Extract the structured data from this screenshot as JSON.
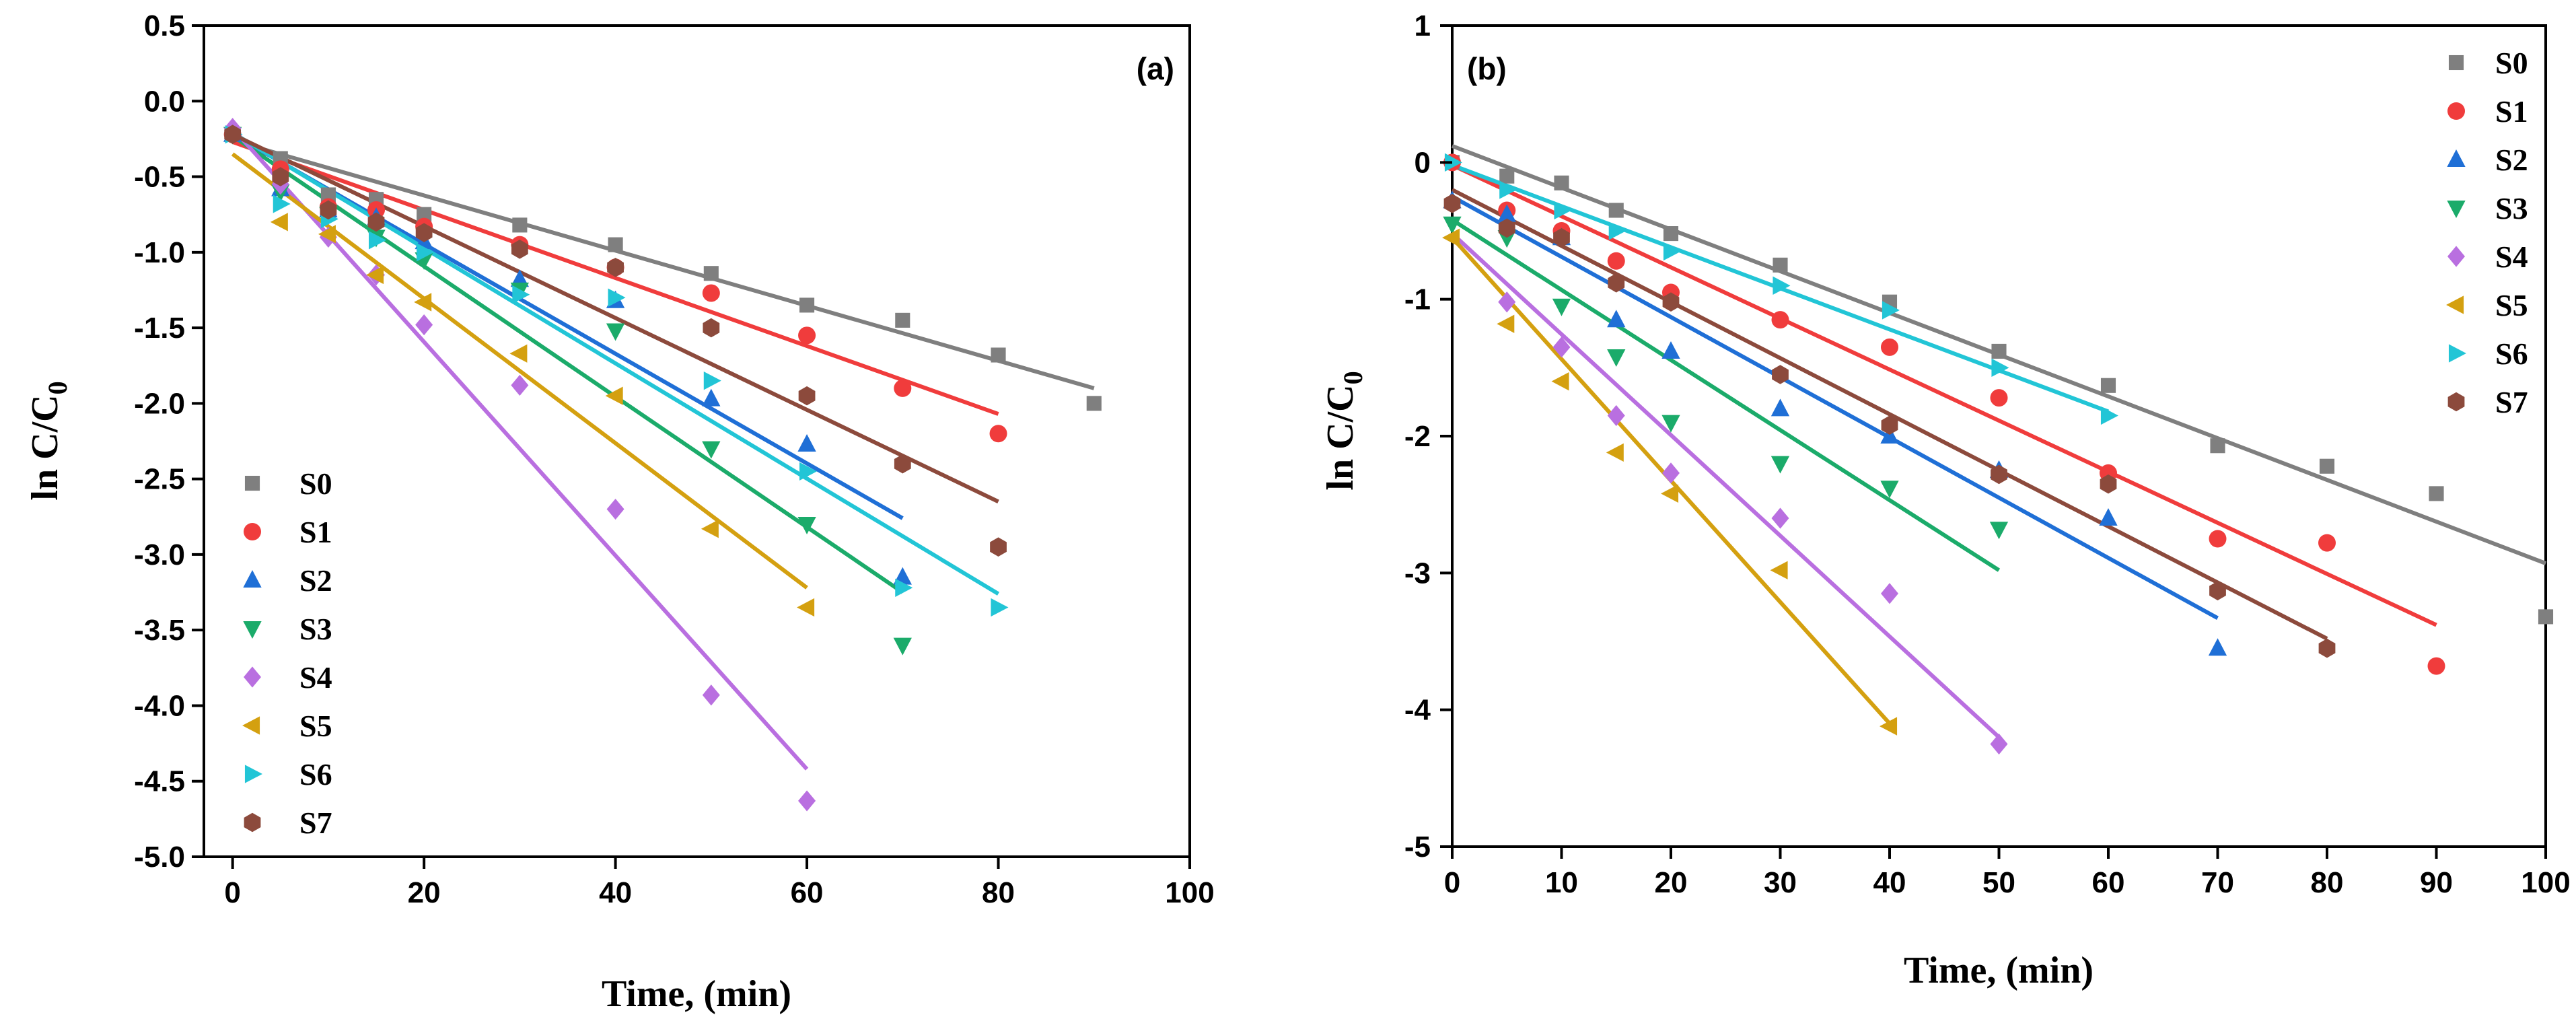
{
  "chart_data": [
    {
      "type": "scatter",
      "panel": "(a)",
      "xlabel": "Time, (min)",
      "ylabel_main": "ln C/C",
      "ylabel_sub": "0",
      "xlim": [
        -3,
        100
      ],
      "ylim": [
        -5.0,
        0.5
      ],
      "xticks": [
        0,
        20,
        40,
        60,
        80,
        100
      ],
      "yticks": [
        0.5,
        0.0,
        -0.5,
        -1.0,
        -1.5,
        -2.0,
        -2.5,
        -3.0,
        -3.5,
        -4.0,
        -4.5,
        -5.0
      ],
      "ytick_labels": [
        "0.5",
        "0.0",
        "-0.5",
        "-1.0",
        "-1.5",
        "-2.0",
        "-2.5",
        "-3.0",
        "-3.5",
        "-4.0",
        "-4.5",
        "-5.0"
      ],
      "legend_position": "bottom-left",
      "series": [
        {
          "name": "S0",
          "color": "#7f7f7f",
          "marker": "square",
          "x": [
            0,
            5,
            10,
            15,
            20,
            30,
            40,
            50,
            60,
            70,
            80,
            90
          ],
          "y": [
            -0.22,
            -0.38,
            -0.62,
            -0.65,
            -0.75,
            -0.82,
            -0.95,
            -1.14,
            -1.35,
            -1.45,
            -1.68,
            -2.0
          ],
          "fit": [
            [
              0,
              -0.26
            ],
            [
              90,
              -1.9
            ]
          ]
        },
        {
          "name": "S1",
          "color": "#f03c3c",
          "marker": "circle",
          "x": [
            0,
            5,
            10,
            15,
            20,
            30,
            40,
            50,
            60,
            70,
            80
          ],
          "y": [
            -0.22,
            -0.45,
            -0.7,
            -0.72,
            -0.83,
            -0.95,
            -1.1,
            -1.27,
            -1.55,
            -1.9,
            -2.2
          ],
          "fit": [
            [
              0,
              -0.27
            ],
            [
              80,
              -2.07
            ]
          ]
        },
        {
          "name": "S2",
          "color": "#1f6fd6",
          "marker": "triangle-up",
          "x": [
            0,
            5,
            10,
            15,
            20,
            30,
            40,
            50,
            60,
            70
          ],
          "y": [
            -0.22,
            -0.58,
            -0.72,
            -0.77,
            -0.93,
            -1.18,
            -1.32,
            -1.97,
            -2.27,
            -3.15
          ],
          "fit": [
            [
              0,
              -0.22
            ],
            [
              70,
              -2.76
            ]
          ]
        },
        {
          "name": "S3",
          "color": "#1bab6a",
          "marker": "triangle-down",
          "x": [
            0,
            5,
            10,
            15,
            20,
            30,
            40,
            50,
            60,
            70
          ],
          "y": [
            -0.22,
            -0.6,
            -0.75,
            -0.9,
            -1.05,
            -1.25,
            -1.52,
            -2.3,
            -2.8,
            -3.6
          ],
          "fit": [
            [
              0,
              -0.23
            ],
            [
              70,
              -3.25
            ]
          ]
        },
        {
          "name": "S4",
          "color": "#b96fe0",
          "marker": "diamond",
          "x": [
            0,
            5,
            10,
            15,
            20,
            30,
            40,
            50,
            60
          ],
          "y": [
            -0.18,
            -0.55,
            -0.9,
            -1.15,
            -1.48,
            -1.88,
            -2.7,
            -3.93,
            -4.63
          ],
          "fit": [
            [
              0,
              -0.18
            ],
            [
              60,
              -4.42
            ]
          ]
        },
        {
          "name": "S5",
          "color": "#d4a010",
          "marker": "triangle-left",
          "x": [
            5,
            10,
            15,
            20,
            30,
            40,
            50,
            60
          ],
          "y": [
            -0.8,
            -0.88,
            -1.15,
            -1.33,
            -1.67,
            -1.95,
            -2.83,
            -3.35
          ],
          "fit": [
            [
              0,
              -0.35
            ],
            [
              60,
              -3.22
            ]
          ]
        },
        {
          "name": "S6",
          "color": "#22c5d6",
          "marker": "triangle-right",
          "x": [
            0,
            5,
            10,
            15,
            20,
            30,
            40,
            50,
            60,
            70,
            80
          ],
          "y": [
            -0.22,
            -0.68,
            -0.78,
            -0.92,
            -1.0,
            -1.28,
            -1.3,
            -1.85,
            -2.45,
            -3.22,
            -3.35
          ],
          "fit": [
            [
              0,
              -0.21
            ],
            [
              80,
              -3.26
            ]
          ]
        },
        {
          "name": "S7",
          "color": "#8c4a3c",
          "marker": "hexagon",
          "x": [
            0,
            5,
            10,
            15,
            20,
            30,
            40,
            50,
            60,
            70,
            80
          ],
          "y": [
            -0.22,
            -0.5,
            -0.72,
            -0.8,
            -0.87,
            -0.98,
            -1.1,
            -1.5,
            -1.95,
            -2.4,
            -2.95
          ],
          "fit": [
            [
              0,
              -0.22
            ],
            [
              80,
              -2.65
            ]
          ]
        }
      ]
    },
    {
      "type": "scatter",
      "panel": "(b)",
      "xlabel": "Time, (min)",
      "ylabel_main": "ln C/C",
      "ylabel_sub": "0",
      "xlim": [
        0,
        100
      ],
      "ylim": [
        -5,
        1
      ],
      "xticks": [
        0,
        10,
        20,
        30,
        40,
        50,
        60,
        70,
        80,
        90,
        100
      ],
      "yticks": [
        1,
        0,
        -1,
        -2,
        -3,
        -4,
        -5
      ],
      "ytick_labels": [
        "1",
        "0",
        "-1",
        "-2",
        "-3",
        "-4",
        "-5"
      ],
      "legend_position": "top-right",
      "series": [
        {
          "name": "S0",
          "color": "#7f7f7f",
          "marker": "square",
          "x": [
            0,
            5,
            10,
            15,
            20,
            30,
            40,
            50,
            60,
            70,
            80,
            90,
            100
          ],
          "y": [
            0.0,
            -0.1,
            -0.15,
            -0.35,
            -0.52,
            -0.75,
            -1.02,
            -1.38,
            -1.63,
            -2.07,
            -2.22,
            -2.42,
            -3.32
          ],
          "fit": [
            [
              0,
              0.12
            ],
            [
              100,
              -2.93
            ]
          ]
        },
        {
          "name": "S1",
          "color": "#f03c3c",
          "marker": "circle",
          "x": [
            0,
            5,
            10,
            15,
            20,
            30,
            40,
            50,
            60,
            70,
            80,
            90
          ],
          "y": [
            0.0,
            -0.35,
            -0.5,
            -0.72,
            -0.95,
            -1.15,
            -1.35,
            -1.72,
            -2.27,
            -2.75,
            -2.78,
            -3.68
          ],
          "fit": [
            [
              0,
              -0.02
            ],
            [
              90,
              -3.38
            ]
          ]
        },
        {
          "name": "S2",
          "color": "#1f6fd6",
          "marker": "triangle-up",
          "x": [
            0,
            5,
            10,
            15,
            20,
            30,
            40,
            50,
            60,
            70
          ],
          "y": [
            -0.28,
            -0.38,
            -0.55,
            -1.15,
            -1.38,
            -1.8,
            -2.0,
            -2.25,
            -2.6,
            -3.55
          ],
          "fit": [
            [
              0,
              -0.25
            ],
            [
              70,
              -3.33
            ]
          ]
        },
        {
          "name": "S3",
          "color": "#1bab6a",
          "marker": "triangle-down",
          "x": [
            0,
            5,
            10,
            15,
            20,
            30,
            40,
            50
          ],
          "y": [
            -0.45,
            -0.55,
            -1.05,
            -1.42,
            -1.9,
            -2.2,
            -2.38,
            -2.68
          ],
          "fit": [
            [
              0,
              -0.42
            ],
            [
              50,
              -2.98
            ]
          ]
        },
        {
          "name": "S4",
          "color": "#b96fe0",
          "marker": "diamond",
          "x": [
            5,
            10,
            15,
            20,
            30,
            40,
            50
          ],
          "y": [
            -1.02,
            -1.35,
            -1.85,
            -2.27,
            -2.6,
            -3.15,
            -4.25
          ],
          "fit": [
            [
              0,
              -0.52
            ],
            [
              50,
              -4.2
            ]
          ]
        },
        {
          "name": "S5",
          "color": "#d4a010",
          "marker": "triangle-left",
          "x": [
            0,
            5,
            10,
            15,
            20,
            30,
            40
          ],
          "y": [
            -0.55,
            -1.18,
            -1.6,
            -2.12,
            -2.42,
            -2.98,
            -4.12
          ],
          "fit": [
            [
              0,
              -0.55
            ],
            [
              40,
              -4.1
            ]
          ]
        },
        {
          "name": "S6",
          "color": "#22c5d6",
          "marker": "triangle-right",
          "x": [
            0,
            5,
            10,
            15,
            20,
            30,
            40,
            50,
            60
          ],
          "y": [
            0.0,
            -0.2,
            -0.35,
            -0.5,
            -0.65,
            -0.9,
            -1.08,
            -1.5,
            -1.85
          ],
          "fit": [
            [
              0,
              -0.02
            ],
            [
              60,
              -1.82
            ]
          ]
        },
        {
          "name": "S7",
          "color": "#8c4a3c",
          "marker": "hexagon",
          "x": [
            0,
            5,
            10,
            15,
            20,
            30,
            40,
            50,
            60,
            70,
            80
          ],
          "y": [
            -0.3,
            -0.48,
            -0.55,
            -0.88,
            -1.02,
            -1.55,
            -1.92,
            -2.28,
            -2.35,
            -3.13,
            -3.55
          ],
          "fit": [
            [
              0,
              -0.2
            ],
            [
              80,
              -3.48
            ]
          ]
        }
      ]
    }
  ]
}
